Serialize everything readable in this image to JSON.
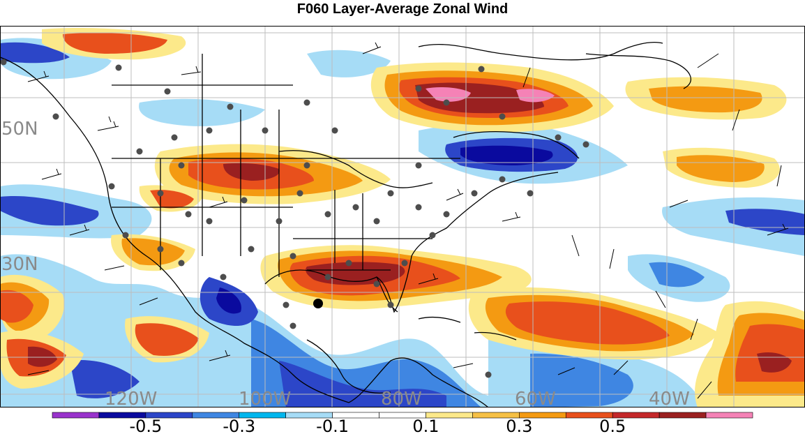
{
  "title": "F060 Layer-Average Zonal Wind",
  "map": {
    "lat_labels": [
      "50N",
      "30N"
    ],
    "lon_labels": [
      "120W",
      "100W",
      "80W",
      "60W",
      "40W"
    ],
    "highlight_marker": "black-dot-station"
  },
  "colorbar": {
    "colors": [
      "#9933cc",
      "#0a0a9e",
      "#2c46c8",
      "#3f86e2",
      "#00b6ee",
      "#a6dcf6",
      "#ffffff",
      "#ffffff",
      "#fce98a",
      "#f6c045",
      "#f49a12",
      "#e8501c",
      "#c4282a",
      "#9a2020",
      "#f582b6"
    ],
    "labels": [
      {
        "text": "-0.5",
        "at": 1
      },
      {
        "text": "-0.3",
        "at": 3
      },
      {
        "text": "-0.1",
        "at": 5
      },
      {
        "text": "0.1",
        "at": 7
      },
      {
        "text": "0.3",
        "at": 9
      },
      {
        "text": "0.5",
        "at": 11
      }
    ]
  }
}
